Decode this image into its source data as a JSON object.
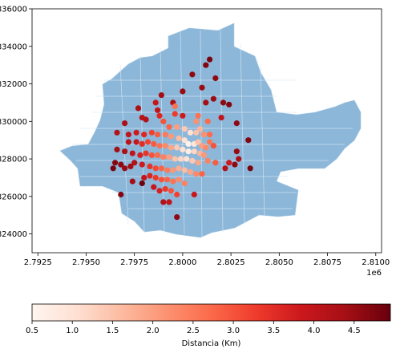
{
  "chart_data": {
    "type": "scatter",
    "title": "",
    "xlabel": "",
    "ylabel": "",
    "x_offset_label": "1e6",
    "xlim": [
      2792200,
      2810300
    ],
    "ylim": [
      823000,
      836000
    ],
    "x_tick_values": [
      2792500,
      2795000,
      2797500,
      2800000,
      2802500,
      2805000,
      2807500,
      2810000
    ],
    "x_tick_labels": [
      "2.7925",
      "2.7950",
      "2.7975",
      "2.8000",
      "2.8025",
      "2.8050",
      "2.8075",
      "2.8100"
    ],
    "y_tick_values": [
      824000,
      826000,
      828000,
      830000,
      832000,
      834000,
      836000
    ],
    "y_tick_labels": [
      "824000",
      "826000",
      "828000",
      "830000",
      "832000",
      "834000",
      "836000"
    ],
    "grid": false,
    "basemap_color": "#8cb7d9",
    "colormap": "Reds",
    "colorbar": {
      "label": "Distancia (Km)",
      "range": [
        0.5,
        4.95
      ],
      "tick_values": [
        0.5,
        1.0,
        1.5,
        2.0,
        2.5,
        3.0,
        3.5,
        4.0,
        4.5
      ],
      "tick_labels": [
        "0.5",
        "1.0",
        "1.5",
        "2.0",
        "2.5",
        "3.0",
        "3.5",
        "4.0",
        "4.5"
      ],
      "orientation": "horizontal",
      "placement": "bottom"
    },
    "points": [
      [
        2801400,
        833300,
        4.8
      ],
      [
        2801200,
        833000,
        4.7
      ],
      [
        2800500,
        832500,
        4.6
      ],
      [
        2801700,
        832300,
        4.6
      ],
      [
        2800000,
        831600,
        4.5
      ],
      [
        2801000,
        831800,
        4.5
      ],
      [
        2799500,
        831000,
        4.3
      ],
      [
        2801600,
        831200,
        4.5
      ],
      [
        2802100,
        831000,
        4.6
      ],
      [
        2802400,
        830900,
        4.7
      ],
      [
        2801200,
        831000,
        4.4
      ],
      [
        2800000,
        830300,
        3.8
      ],
      [
        2799600,
        830400,
        3.3
      ],
      [
        2799600,
        830800,
        2.6
      ],
      [
        2800800,
        830300,
        2.6
      ],
      [
        2800700,
        830000,
        2.2
      ],
      [
        2801300,
        830000,
        2.7
      ],
      [
        2802000,
        830200,
        4.0
      ],
      [
        2802800,
        829900,
        4.6
      ],
      [
        2797700,
        830700,
        4.3
      ],
      [
        2797900,
        830200,
        4.1
      ],
      [
        2798100,
        830100,
        4.2
      ],
      [
        2798700,
        830600,
        4.0
      ],
      [
        2798600,
        831000,
        3.9
      ],
      [
        2798800,
        830300,
        3.6
      ],
      [
        2799000,
        830000,
        3.0
      ],
      [
        2799300,
        829700,
        2.8
      ],
      [
        2799700,
        829700,
        2.0
      ],
      [
        2800100,
        829600,
        1.4
      ],
      [
        2800400,
        829400,
        1.0
      ],
      [
        2800700,
        829400,
        1.5
      ],
      [
        2800900,
        829600,
        1.7
      ],
      [
        2801100,
        829300,
        2.2
      ],
      [
        2801400,
        829300,
        2.7
      ],
      [
        2801400,
        828900,
        2.6
      ],
      [
        2797000,
        829900,
        4.3
      ],
      [
        2796600,
        829400,
        4.2
      ],
      [
        2797200,
        829300,
        4.0
      ],
      [
        2797600,
        829400,
        3.8
      ],
      [
        2798000,
        829300,
        3.6
      ],
      [
        2798400,
        829400,
        3.2
      ],
      [
        2798700,
        829300,
        2.9
      ],
      [
        2799100,
        829300,
        2.5
      ],
      [
        2799400,
        829200,
        2.1
      ],
      [
        2799800,
        829100,
        1.6
      ],
      [
        2800100,
        829000,
        1.0
      ],
      [
        2800300,
        828800,
        0.6
      ],
      [
        2800600,
        828800,
        0.9
      ],
      [
        2800800,
        828900,
        1.5
      ],
      [
        2801000,
        828700,
        2.0
      ],
      [
        2801200,
        828600,
        2.3
      ],
      [
        2801600,
        828700,
        3.0
      ],
      [
        2797200,
        828900,
        4.1
      ],
      [
        2797600,
        828900,
        3.9
      ],
      [
        2797900,
        828800,
        3.5
      ],
      [
        2798200,
        828900,
        3.2
      ],
      [
        2798500,
        828800,
        2.9
      ],
      [
        2798800,
        828700,
        2.6
      ],
      [
        2799100,
        828700,
        2.3
      ],
      [
        2799400,
        828600,
        1.9
      ],
      [
        2799700,
        828600,
        1.4
      ],
      [
        2800000,
        828500,
        1.0
      ],
      [
        2800300,
        828400,
        0.7
      ],
      [
        2800600,
        828400,
        1.2
      ],
      [
        2800900,
        828300,
        1.7
      ],
      [
        2801100,
        828200,
        2.1
      ],
      [
        2796600,
        828500,
        4.4
      ],
      [
        2797000,
        828400,
        4.3
      ],
      [
        2797400,
        828300,
        4.0
      ],
      [
        2797800,
        828200,
        3.7
      ],
      [
        2798100,
        828300,
        3.4
      ],
      [
        2798400,
        828200,
        3.0
      ],
      [
        2798700,
        828200,
        2.7
      ],
      [
        2799000,
        828100,
        2.4
      ],
      [
        2799300,
        828100,
        2.0
      ],
      [
        2799600,
        828000,
        1.5
      ],
      [
        2799900,
        828000,
        1.2
      ],
      [
        2800200,
        828000,
        1.0
      ],
      [
        2800500,
        827900,
        1.4
      ],
      [
        2800800,
        827800,
        1.9
      ],
      [
        2801300,
        827900,
        2.4
      ],
      [
        2801700,
        827800,
        2.9
      ],
      [
        2802400,
        827800,
        3.8
      ],
      [
        2802900,
        828000,
        4.3
      ],
      [
        2802800,
        828400,
        4.5
      ],
      [
        2803400,
        829000,
        4.7
      ],
      [
        2803500,
        827500,
        4.8
      ],
      [
        2796500,
        827800,
        4.7
      ],
      [
        2796800,
        827700,
        4.6
      ],
      [
        2797000,
        827500,
        4.5
      ],
      [
        2797300,
        827600,
        4.4
      ],
      [
        2797500,
        827800,
        4.2
      ],
      [
        2797900,
        827700,
        3.8
      ],
      [
        2798300,
        827600,
        3.4
      ],
      [
        2798600,
        827500,
        3.1
      ],
      [
        2798900,
        827500,
        2.8
      ],
      [
        2799200,
        827400,
        2.5
      ],
      [
        2799500,
        827400,
        2.1
      ],
      [
        2799800,
        827500,
        1.8
      ],
      [
        2800100,
        827400,
        1.6
      ],
      [
        2800400,
        827300,
        1.9
      ],
      [
        2800700,
        827200,
        2.3
      ],
      [
        2801000,
        827200,
        2.8
      ],
      [
        2802200,
        827500,
        4.2
      ],
      [
        2802700,
        827700,
        4.6
      ],
      [
        2796400,
        827500,
        4.8
      ],
      [
        2798000,
        827000,
        4.0
      ],
      [
        2798300,
        827100,
        3.6
      ],
      [
        2798600,
        827000,
        3.3
      ],
      [
        2798900,
        826900,
        3.0
      ],
      [
        2799200,
        826900,
        2.8
      ],
      [
        2799500,
        826800,
        2.6
      ],
      [
        2799800,
        826900,
        2.3
      ],
      [
        2800100,
        826700,
        2.4
      ],
      [
        2797900,
        826700,
        4.9
      ],
      [
        2798500,
        826500,
        3.9
      ],
      [
        2798800,
        826300,
        3.7
      ],
      [
        2799100,
        826400,
        3.3
      ],
      [
        2799400,
        826300,
        3.0
      ],
      [
        2799700,
        826100,
        3.2
      ],
      [
        2800600,
        826100,
        3.9
      ],
      [
        2799000,
        825700,
        4.2
      ],
      [
        2799300,
        825700,
        4.0
      ],
      [
        2799700,
        824900,
        4.6
      ],
      [
        2796800,
        826100,
        4.7
      ],
      [
        2797400,
        826800,
        4.4
      ],
      [
        2798900,
        831400,
        4.4
      ]
    ]
  }
}
